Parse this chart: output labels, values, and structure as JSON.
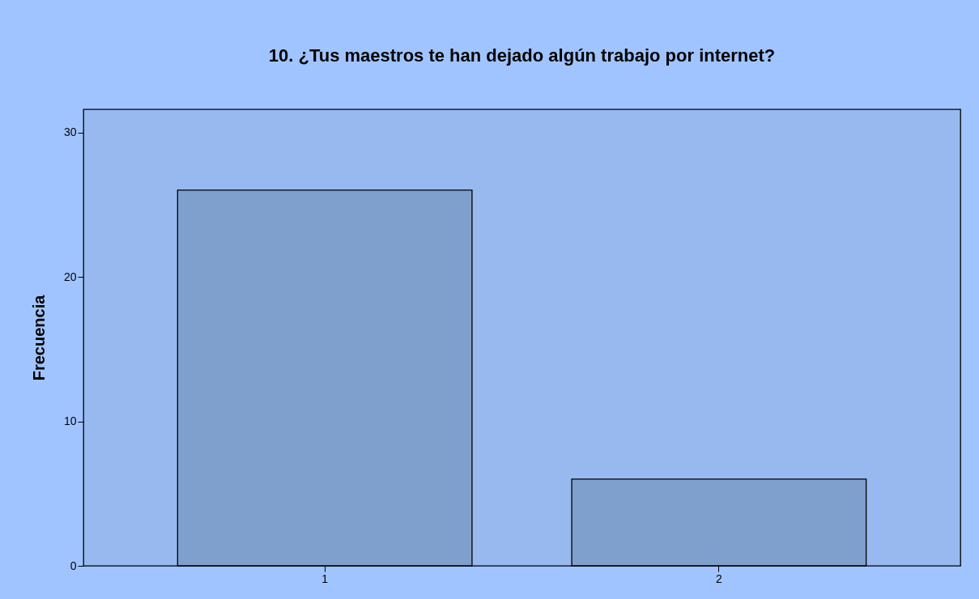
{
  "chart_data": {
    "type": "bar",
    "title": "10. ¿Tus maestros te han dejado algún trabajo por internet?",
    "ylabel": "Frecuencia",
    "categories": [
      "1",
      "2"
    ],
    "values": [
      26,
      6
    ],
    "color": "#7f9fcc",
    "ylim": [
      0,
      31.6
    ],
    "yticks": [
      0,
      10,
      20,
      30
    ],
    "grid": false
  }
}
